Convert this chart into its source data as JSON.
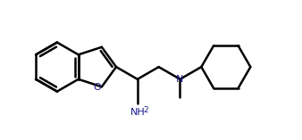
{
  "background_color": "#ffffff",
  "line_color": "#000000",
  "heteroatom_color": "#1a1a8c",
  "bond_width": 1.8,
  "figure_size": [
    3.38,
    1.57
  ],
  "dpi": 100,
  "N_label": "N",
  "O_label": "O"
}
